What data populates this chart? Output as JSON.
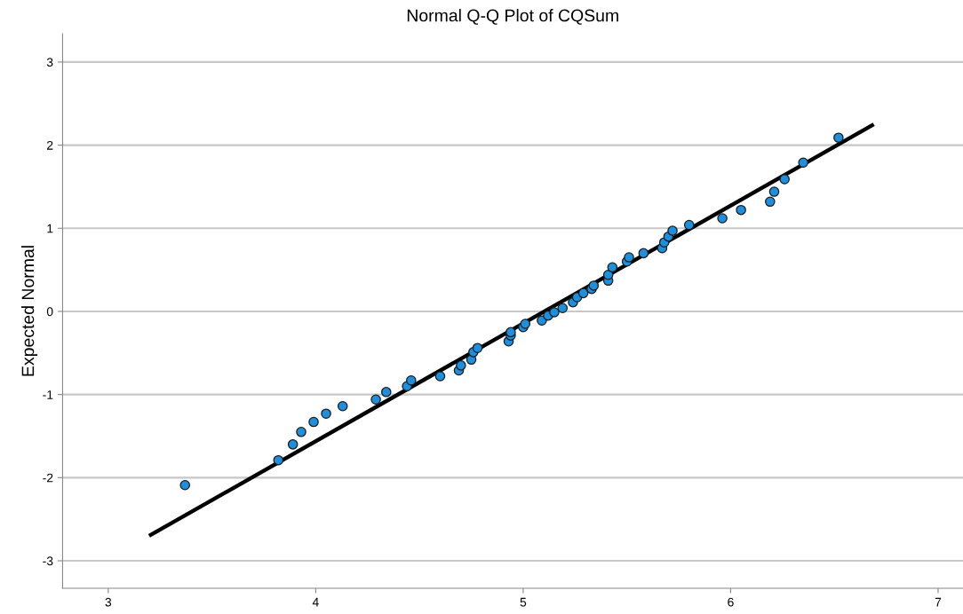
{
  "chart_data": {
    "type": "scatter",
    "title": "Normal Q-Q Plot of CQSum",
    "ylabel": "Expected Normal",
    "xlim": [
      2.78,
      7.12
    ],
    "ylim": [
      -3.33,
      3.34
    ],
    "xticks": [
      3,
      4,
      5,
      6,
      7
    ],
    "yticks": [
      -3,
      -2,
      -1,
      0,
      1,
      2,
      3
    ],
    "grid": "y",
    "legend": false,
    "series": [
      {
        "color": "#1e8fdc",
        "marker": "circle",
        "x": [
          3.37,
          3.82,
          3.89,
          3.93,
          3.99,
          4.05,
          4.13,
          4.29,
          4.34,
          4.44,
          4.46,
          4.6,
          4.69,
          4.7,
          4.75,
          4.76,
          4.78,
          4.93,
          4.94,
          4.94,
          5.0,
          5.01,
          5.09,
          5.12,
          5.15,
          5.19,
          5.24,
          5.26,
          5.29,
          5.33,
          5.34,
          5.41,
          5.41,
          5.43,
          5.5,
          5.51,
          5.58,
          5.67,
          5.68,
          5.7,
          5.72,
          5.8,
          5.96,
          6.05,
          6.19,
          6.21,
          6.26,
          6.35,
          6.52
        ],
        "values": [
          -2.09,
          -1.79,
          -1.6,
          -1.45,
          -1.33,
          -1.23,
          -1.14,
          -1.06,
          -0.97,
          -0.9,
          -0.83,
          -0.78,
          -0.71,
          -0.65,
          -0.58,
          -0.49,
          -0.44,
          -0.36,
          -0.29,
          -0.25,
          -0.19,
          -0.15,
          -0.11,
          -0.05,
          -0.01,
          0.04,
          0.11,
          0.17,
          0.22,
          0.27,
          0.31,
          0.37,
          0.44,
          0.53,
          0.6,
          0.65,
          0.7,
          0.76,
          0.83,
          0.9,
          0.97,
          1.04,
          1.12,
          1.22,
          1.32,
          1.44,
          1.59,
          1.79,
          2.09
        ]
      },
      {
        "type": "line",
        "marker": "none",
        "color": "#000000",
        "x": [
          3.197,
          6.69
        ],
        "values": [
          -2.7,
          2.25
        ]
      }
    ]
  }
}
